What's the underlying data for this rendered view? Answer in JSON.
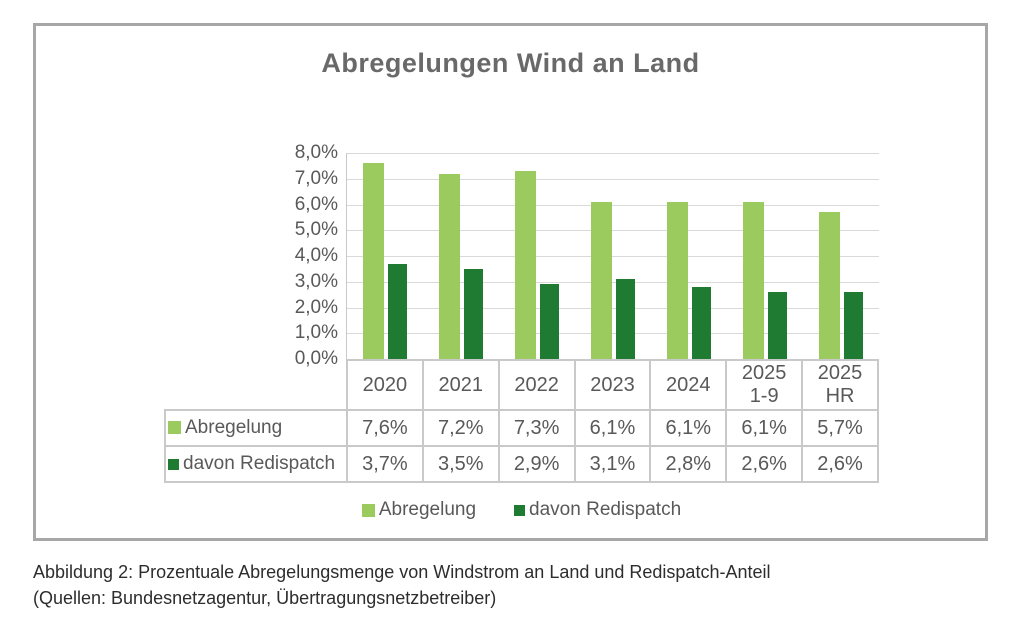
{
  "figure": {
    "caption_line1": "Abbildung 2: Prozentuale Abregelungsmenge von Windstrom an Land und Redispatch-Anteil",
    "caption_line2": "(Quellen: Bundesnetzagentur, Übertragungsnetzbetreiber)"
  },
  "chart_data": {
    "type": "bar",
    "title": "Abregelungen Wind an Land",
    "categories": [
      "2020",
      "2021",
      "2022",
      "2023",
      "2024",
      "2025 1-9",
      "2025 HR"
    ],
    "series": [
      {
        "name": "Abregelung",
        "color": "#9bcb5e",
        "values": [
          7.6,
          7.2,
          7.3,
          6.1,
          6.1,
          6.1,
          5.7
        ],
        "labels": [
          "7,6%",
          "7,2%",
          "7,3%",
          "6,1%",
          "6,1%",
          "6,1%",
          "5,7%"
        ]
      },
      {
        "name": "davon Redispatch",
        "color": "#1e7b31",
        "values": [
          3.7,
          3.5,
          2.9,
          3.1,
          2.8,
          2.6,
          2.6
        ],
        "labels": [
          "3,7%",
          "3,5%",
          "2,9%",
          "3,1%",
          "2,8%",
          "2,6%",
          "2,6%"
        ]
      }
    ],
    "ylim": [
      0,
      8
    ],
    "ytick_step": 1,
    "ytick_labels": [
      "0,0%",
      "1,0%",
      "2,0%",
      "3,0%",
      "4,0%",
      "5,0%",
      "6,0%",
      "7,0%",
      "8,0%"
    ],
    "grid": true,
    "legend_position": "bottom",
    "data_table_shown": true
  }
}
